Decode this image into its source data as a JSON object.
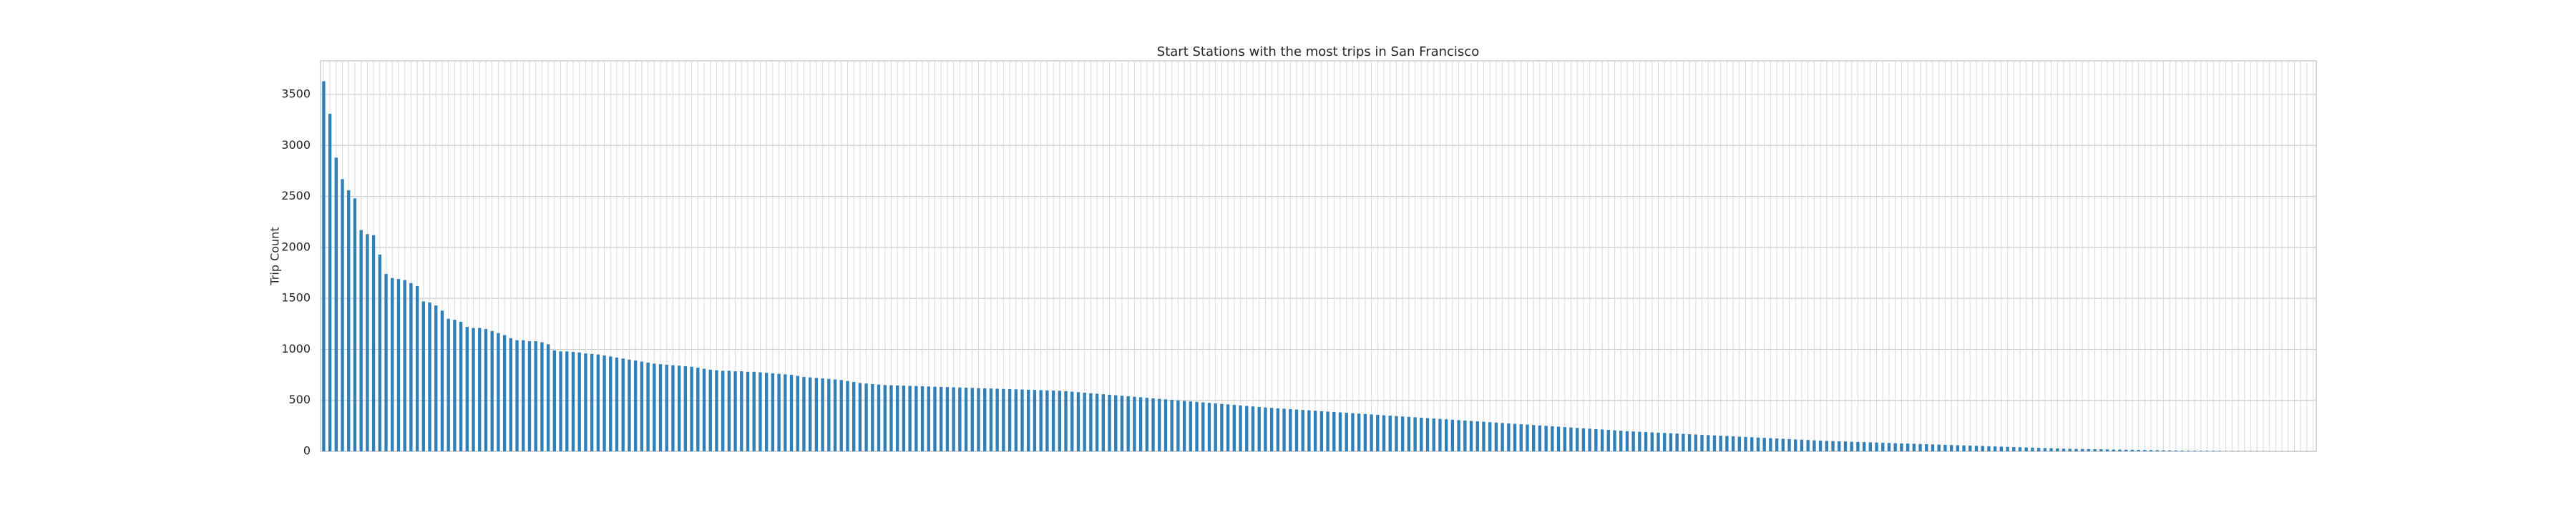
{
  "chart_data": {
    "type": "bar",
    "title": "Start Stations with the most trips in San Francisco",
    "ylabel": "Trip Count",
    "values": [
      3630,
      3310,
      2880,
      2670,
      2560,
      2480,
      2170,
      2130,
      2120,
      1930,
      1740,
      1700,
      1690,
      1680,
      1650,
      1620,
      1470,
      1460,
      1430,
      1380,
      1300,
      1290,
      1270,
      1220,
      1210,
      1210,
      1200,
      1180,
      1160,
      1140,
      1110,
      1090,
      1090,
      1080,
      1080,
      1070,
      1050,
      990,
      980,
      980,
      975,
      970,
      960,
      955,
      950,
      940,
      930,
      920,
      910,
      900,
      890,
      880,
      870,
      860,
      855,
      850,
      845,
      840,
      835,
      830,
      820,
      810,
      800,
      795,
      790,
      790,
      785,
      785,
      780,
      780,
      775,
      770,
      765,
      760,
      755,
      750,
      740,
      730,
      725,
      720,
      715,
      710,
      705,
      700,
      690,
      680,
      670,
      665,
      660,
      655,
      650,
      648,
      646,
      644,
      642,
      640,
      638,
      636,
      634,
      632,
      630,
      628,
      626,
      624,
      622,
      620,
      618,
      616,
      614,
      612,
      610,
      608,
      606,
      604,
      602,
      600,
      598,
      596,
      594,
      590,
      585,
      580,
      575,
      570,
      565,
      560,
      555,
      550,
      545,
      540,
      535,
      530,
      525,
      520,
      515,
      510,
      505,
      500,
      495,
      490,
      485,
      480,
      475,
      470,
      465,
      460,
      455,
      450,
      445,
      440,
      435,
      430,
      426,
      422,
      418,
      414,
      410,
      406,
      402,
      398,
      394,
      390,
      386,
      382,
      378,
      374,
      370,
      366,
      362,
      358,
      354,
      350,
      346,
      342,
      338,
      334,
      330,
      326,
      322,
      318,
      314,
      310,
      306,
      302,
      298,
      294,
      290,
      286,
      282,
      278,
      274,
      270,
      266,
      262,
      258,
      254,
      250,
      246,
      242,
      238,
      234,
      230,
      226,
      222,
      218,
      214,
      210,
      206,
      202,
      198,
      195,
      192,
      189,
      186,
      183,
      180,
      177,
      174,
      171,
      168,
      165,
      162,
      159,
      156,
      153,
      150,
      147,
      144,
      141,
      138,
      135,
      132,
      129,
      126,
      123,
      120,
      117,
      114,
      111,
      108,
      105,
      102,
      100,
      98,
      96,
      94,
      92,
      90,
      88,
      86,
      84,
      82,
      80,
      78,
      76,
      74,
      72,
      70,
      68,
      66,
      64,
      62,
      60,
      58,
      56,
      54,
      52,
      50,
      48,
      46,
      44,
      42,
      40,
      38,
      36,
      34,
      32,
      30,
      28,
      26,
      25,
      24,
      23,
      22,
      21,
      20,
      19,
      18,
      17,
      16,
      15,
      14,
      13,
      12,
      11,
      10,
      9,
      8,
      7,
      6,
      6,
      5,
      5,
      4,
      4,
      3,
      3,
      3,
      2,
      2,
      2,
      2,
      1,
      1,
      1,
      1,
      1,
      1,
      1,
      1
    ],
    "color": "#2f7fb8",
    "ylim": [
      0,
      3830
    ],
    "yticks": [
      0,
      500,
      1000,
      1500,
      2000,
      2500,
      3000,
      3500
    ],
    "grid": true
  }
}
